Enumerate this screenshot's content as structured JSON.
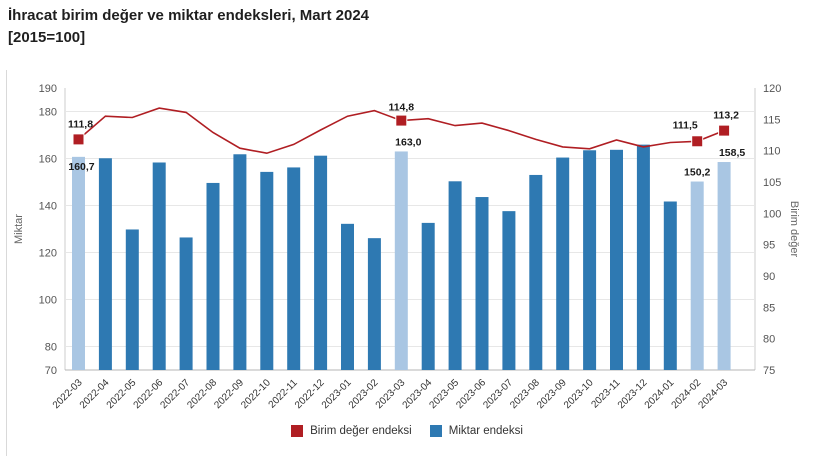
{
  "header": {
    "title_line1": "İhracat birim değer ve miktar endeksleri, Mart 2024",
    "title_line2": "[2015=100]"
  },
  "chart_data": {
    "type": "combo",
    "categories": [
      "2022-03",
      "2022-04",
      "2022-05",
      "2022-06",
      "2022-07",
      "2022-08",
      "2022-09",
      "2022-10",
      "2022-11",
      "2022-12",
      "2023-01",
      "2023-02",
      "2023-03",
      "2023-04",
      "2023-05",
      "2023-06",
      "2023-07",
      "2023-08",
      "2023-09",
      "2023-10",
      "2023-11",
      "2023-12",
      "2024-01",
      "2024-02",
      "2024-03"
    ],
    "series": [
      {
        "name": "Miktar endeksi",
        "type": "bar",
        "axis": "left",
        "color": "#2E79B2",
        "highlight_color": "#A9C6E3",
        "highlighted_indices": [
          0,
          12,
          23,
          24
        ],
        "values": [
          160.7,
          160.1,
          129.8,
          158.3,
          126.4,
          149.6,
          161.8,
          154.3,
          156.2,
          161.2,
          132.2,
          126.1,
          163.0,
          132.6,
          150.3,
          143.6,
          137.6,
          153.0,
          160.4,
          163.5,
          163.7,
          165.9,
          141.7,
          150.2,
          158.5
        ],
        "labels": {
          "0": "160,7",
          "12": "163,0",
          "23": "150,2",
          "24": "158,5"
        }
      },
      {
        "name": "Birim değer endeksi",
        "type": "line",
        "axis": "right",
        "color": "#B01E23",
        "marker_indices": [
          0,
          12,
          23,
          24
        ],
        "values": [
          111.8,
          115.5,
          115.3,
          116.8,
          116.1,
          112.9,
          110.4,
          109.6,
          111.0,
          113.3,
          115.5,
          116.4,
          114.8,
          115.1,
          114.0,
          114.4,
          113.2,
          111.8,
          110.6,
          110.3,
          111.7,
          110.6,
          111.3,
          111.5,
          113.2
        ],
        "labels": {
          "0": "111,8",
          "12": "114,8",
          "23": "111,5",
          "24": "113,2"
        }
      }
    ],
    "left_axis": {
      "title": "Miktar",
      "min": 70,
      "max": 190,
      "ticks": [
        190,
        180,
        160,
        140,
        120,
        100,
        80,
        70
      ],
      "gridlines": [
        80,
        100,
        120,
        140,
        160,
        180
      ]
    },
    "right_axis": {
      "title": "Birim değer",
      "min": 75,
      "max": 120,
      "ticks": [
        120,
        115,
        110,
        105,
        100,
        95,
        90,
        85,
        80,
        75
      ]
    },
    "legend": [
      {
        "label": "Birim değer endeksi",
        "color": "#B01E23"
      },
      {
        "label": "Miktar endeksi",
        "color": "#2E79B2"
      }
    ]
  }
}
